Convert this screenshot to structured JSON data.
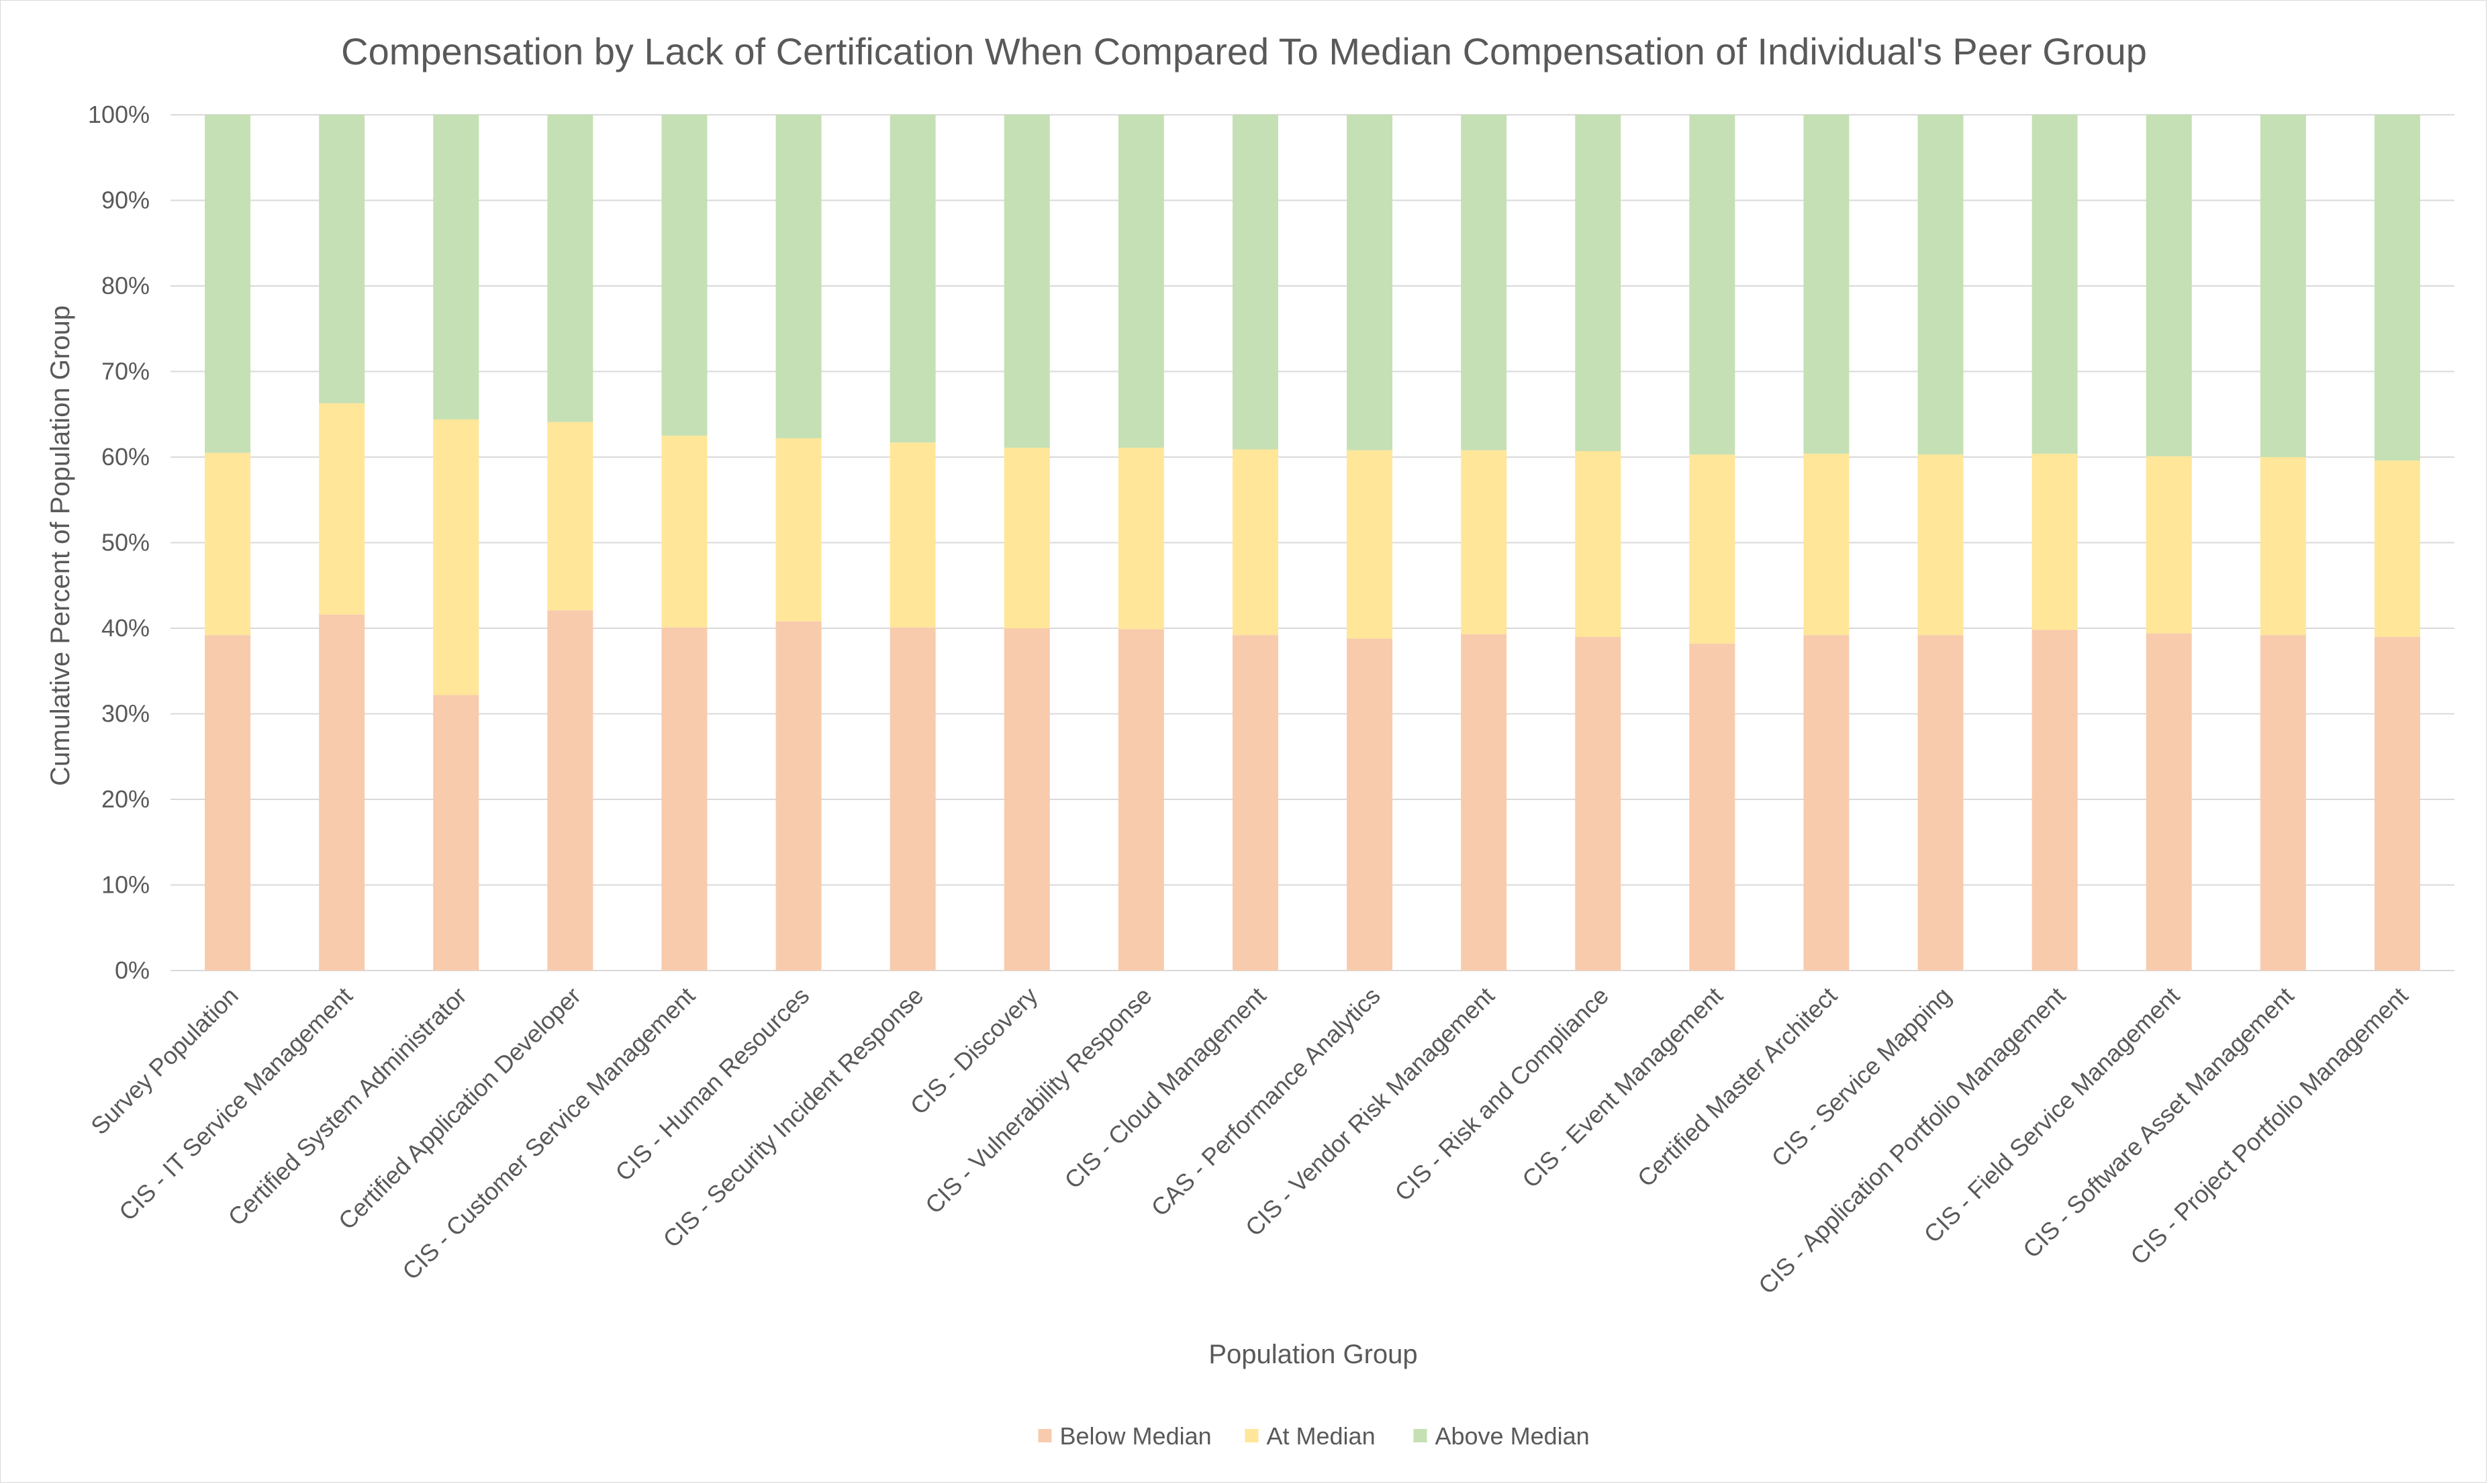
{
  "chart_data": {
    "type": "bar",
    "stacked": true,
    "title": "Compensation by Lack of Certification When Compared To Median Compensation of Individual's Peer Group",
    "xlabel": "Population Group",
    "ylabel": "Cumulative Percent of Population Group",
    "ylim": [
      0,
      100
    ],
    "yticks": [
      "0%",
      "10%",
      "20%",
      "30%",
      "40%",
      "50%",
      "60%",
      "70%",
      "80%",
      "90%",
      "100%"
    ],
    "grid": true,
    "legend_position": "bottom",
    "categories": [
      "Survey Population",
      "CIS - IT Service Management",
      "Certified System Administrator",
      "Certified Application Developer",
      "CIS - Customer Service Management",
      "CIS - Human Resources",
      "CIS - Security Incident Response",
      "CIS - Discovery",
      "CIS - Vulnerability Response",
      "CIS - Cloud Management",
      "CAS - Performance Analytics",
      "CIS - Vendor Risk Management",
      "CIS - Risk and Compliance",
      "CIS - Event Management",
      "Certified Master Architect",
      "CIS - Service Mapping",
      "CIS - Application Portfolio Management",
      "CIS - Field Service Management",
      "CIS - Software Asset Management",
      "CIS - Project Portfolio Management"
    ],
    "series": [
      {
        "name": "Below Median",
        "color": "#f8cbad",
        "values": [
          39.2,
          41.6,
          32.2,
          42.1,
          40.1,
          40.8,
          40.1,
          40.0,
          39.9,
          39.2,
          38.8,
          39.3,
          39.0,
          38.2,
          39.2,
          39.2,
          39.8,
          39.4,
          39.2,
          39.0
        ]
      },
      {
        "name": "At Median",
        "color": "#ffe699",
        "values": [
          21.3,
          24.7,
          32.2,
          22.0,
          22.4,
          21.4,
          21.6,
          21.1,
          21.2,
          21.7,
          22.0,
          21.5,
          21.7,
          22.1,
          21.2,
          21.1,
          20.6,
          20.7,
          20.8,
          20.6
        ]
      },
      {
        "name": "Above Median",
        "color": "#c5e0b4",
        "values": [
          39.5,
          33.7,
          35.6,
          35.9,
          37.5,
          37.8,
          38.3,
          38.9,
          38.9,
          39.1,
          39.2,
          39.2,
          39.3,
          39.7,
          39.6,
          39.7,
          39.6,
          39.9,
          40.0,
          40.4
        ]
      }
    ]
  }
}
